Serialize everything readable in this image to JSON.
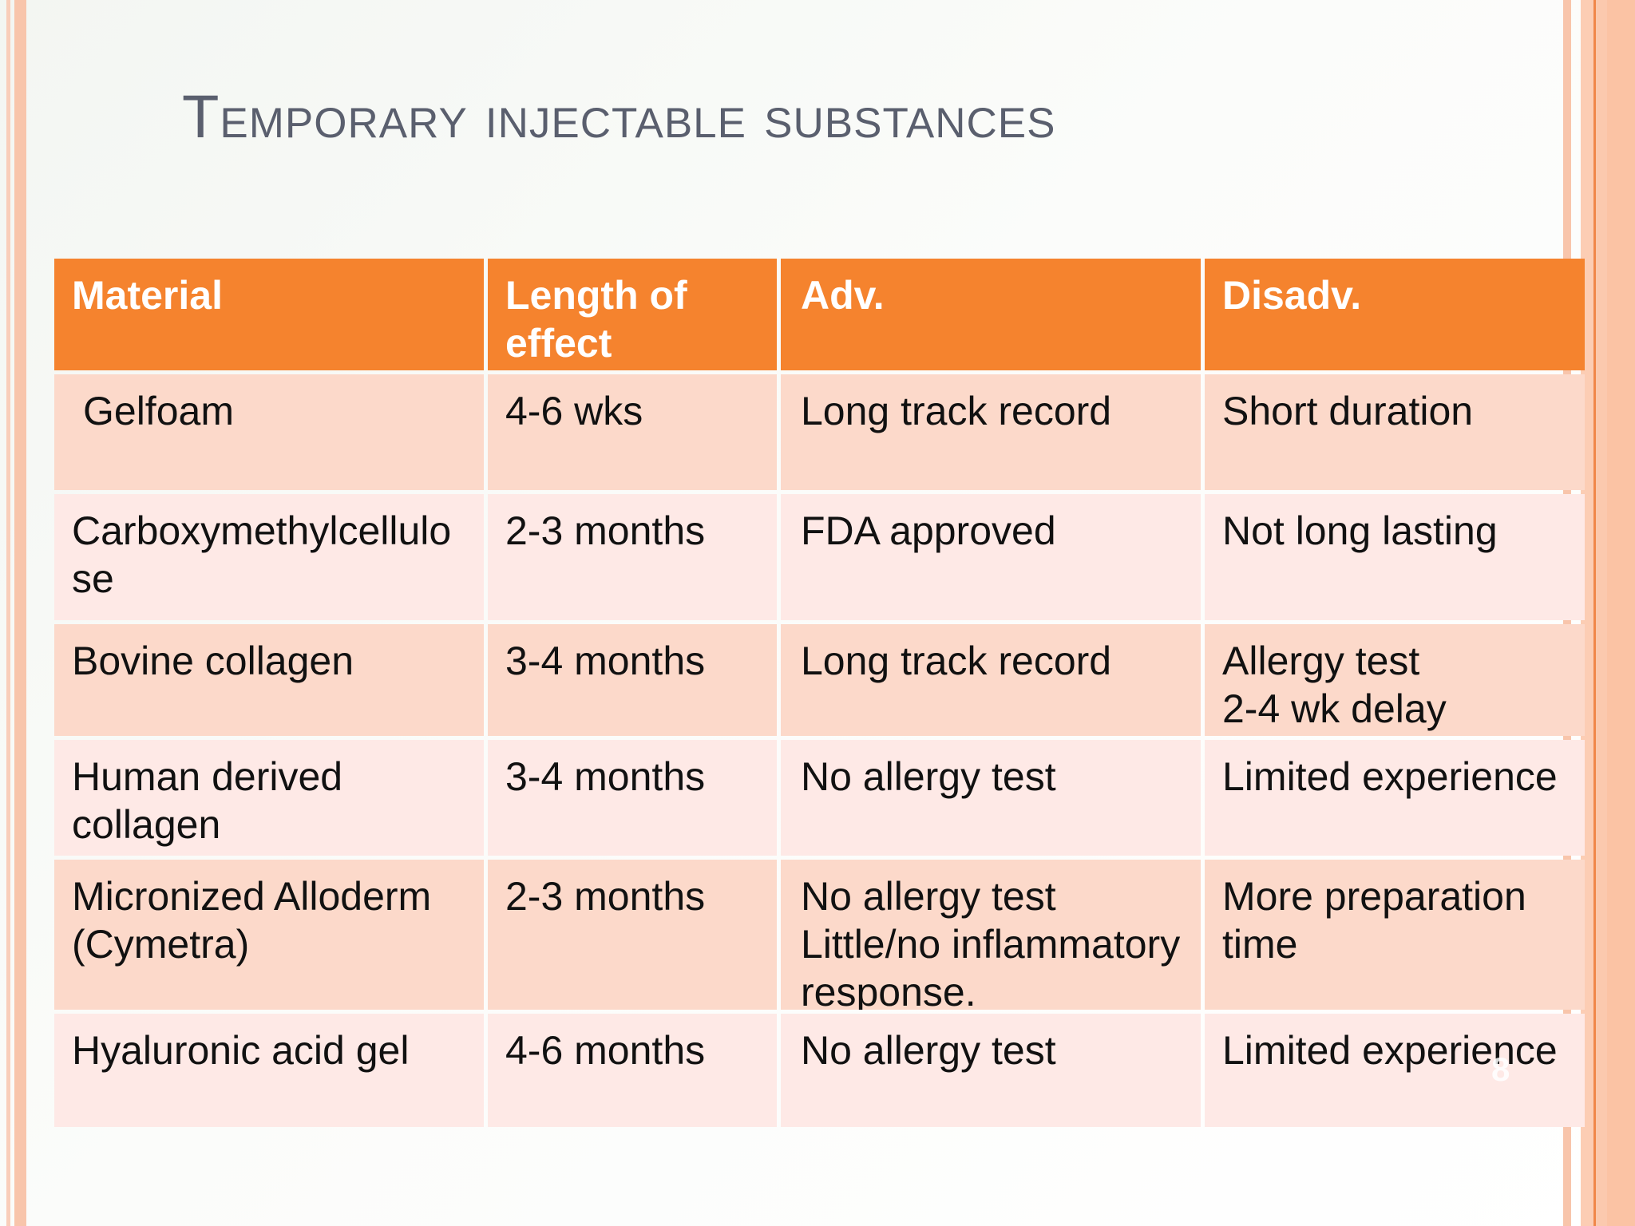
{
  "slide": {
    "title": "Temporary injectable substances",
    "page_number": "8"
  },
  "table": {
    "headers": [
      "Material",
      "Length of effect",
      "Adv.",
      "Disadv."
    ],
    "rows": [
      {
        "material": "Gelfoam",
        "length_of_effect": "4-6 wks",
        "adv": "Long track record",
        "disadv": "Short duration"
      },
      {
        "material": "Carboxymethylcellulose",
        "length_of_effect": "2-3 months",
        "adv": "FDA approved",
        "disadv": "Not long lasting"
      },
      {
        "material": "Bovine collagen",
        "length_of_effect": "3-4 months",
        "adv": "Long track record",
        "disadv": "Allergy test\n2-4 wk delay"
      },
      {
        "material": "Human derived collagen",
        "length_of_effect": "3-4 months",
        "adv": "No allergy test",
        "disadv": "Limited experience"
      },
      {
        "material": "Micronized Alloderm (Cymetra)",
        "length_of_effect": "2-3 months",
        "adv": "No allergy test\nLittle/no inflammatory response.",
        "disadv": "More preparation time"
      },
      {
        "material": "Hyaluronic acid gel",
        "length_of_effect": "4-6 months",
        "adv": "No allergy test",
        "disadv": "Limited experience"
      }
    ]
  },
  "colors": {
    "header_bg": "#F5832E",
    "row_peach": "#FCD9CA",
    "row_pink": "#FEE9E6",
    "stripe_salmon": "#F8C5AB",
    "stripe_orange_line": "#F0874A",
    "title_text": "#5A5F6E",
    "header_text": "#FFFFFF",
    "body_text": "#111111"
  }
}
